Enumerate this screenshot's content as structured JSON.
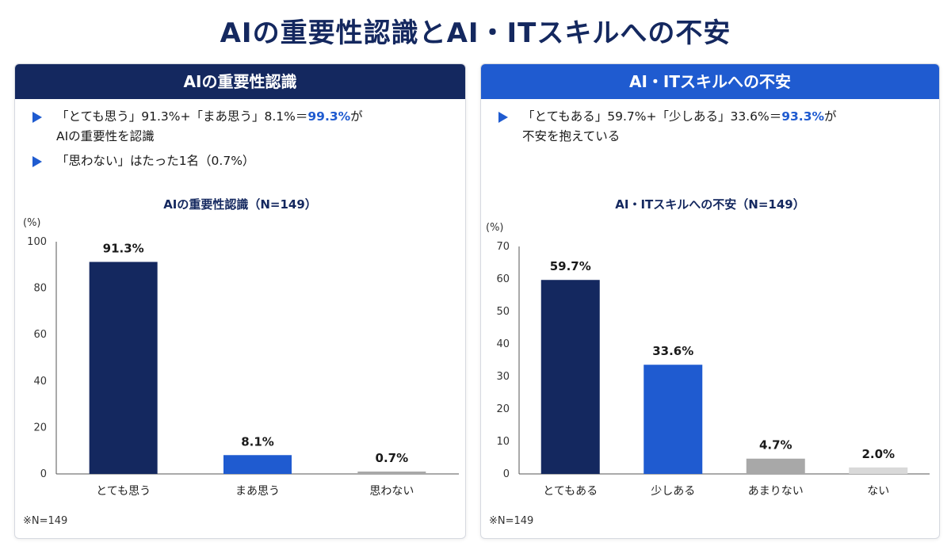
{
  "page_title": "AIの重要性認識とAI・ITスキルへの不安",
  "left": {
    "header": "AIの重要性認識",
    "header_color": "#14285f",
    "bullet1": {
      "pre": "「とても思う」91.3%+「まあ思う」8.1%＝",
      "hl": "99.3%",
      "post": "が",
      "line2": "AIの重要性を認識"
    },
    "bullet2": {
      "text": "「思わない」はたった1名（0.7%）"
    },
    "note": "※N=149"
  },
  "right": {
    "header": "AI・ITスキルへの不安",
    "header_color": "#1f5bd0",
    "bullet1": {
      "pre": "「とてもある」59.7%+「少しある」33.6%＝",
      "hl": "93.3%",
      "post": "が",
      "line2": "不安を抱えている"
    },
    "note": "※N=149"
  },
  "chart_data": [
    {
      "type": "bar",
      "title": "AIの重要性認識（N=149）",
      "ylabel": "(%)",
      "ylim": [
        0,
        100
      ],
      "yticks": [
        0,
        20,
        40,
        60,
        80,
        100
      ],
      "categories": [
        "とても思う",
        "まあ思う",
        "思わない"
      ],
      "values": [
        91.3,
        8.1,
        0.7
      ],
      "labels": [
        "91.3%",
        "8.1%",
        "0.7%"
      ],
      "colors": [
        "#14285f",
        "#1f5bd0",
        "#a8a8a8"
      ]
    },
    {
      "type": "bar",
      "title": "AI・ITスキルへの不安（N=149）",
      "ylabel": "(%)",
      "ylim": [
        0,
        70
      ],
      "yticks": [
        0,
        10,
        20,
        30,
        40,
        50,
        60,
        70
      ],
      "categories": [
        "とてもある",
        "少しある",
        "あまりない",
        "ない"
      ],
      "values": [
        59.7,
        33.6,
        4.7,
        2.0
      ],
      "labels": [
        "59.7%",
        "33.6%",
        "4.7%",
        "2.0%"
      ],
      "colors": [
        "#14285f",
        "#1f5bd0",
        "#a8a8a8",
        "#d9d9d9"
      ]
    }
  ]
}
